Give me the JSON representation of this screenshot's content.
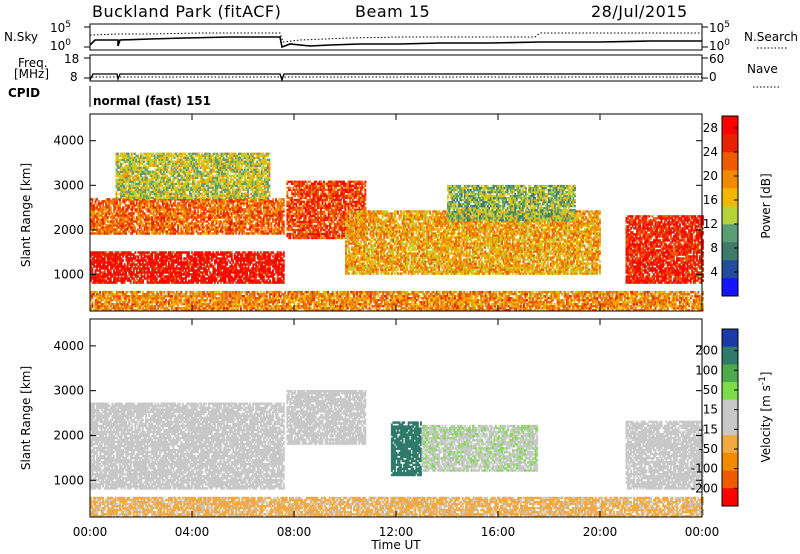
{
  "header": {
    "title": "Buckland Park (fitACF)",
    "beam": "Beam 15",
    "date": "28/Jul/2015"
  },
  "summary_panels": {
    "nsky_label": "N.Sky",
    "nsky_ticks": [
      "10^5",
      "10^0"
    ],
    "nsearch_label": "N.Search",
    "nsearch_ticks": [
      "10^5",
      "10^0"
    ],
    "freq_label": "Freq.",
    "freq_unit": "[MHz]",
    "freq_ticks": [
      "18",
      "8"
    ],
    "nave_label": "Nave",
    "nave_ticks": [
      "60",
      "0"
    ],
    "cpid_label": "CPID",
    "cpid_text": "normal (fast) 151"
  },
  "colors": {
    "power_scale": [
      "#1414ff",
      "#234d9c",
      "#3f7a6a",
      "#5a9c74",
      "#b7d33c",
      "#f1b800",
      "#f28a00",
      "#ee5a00",
      "#e82200",
      "#ff0000"
    ],
    "velocity_scale": [
      "#ff0000",
      "#ef5a00",
      "#f28a00",
      "#f2a940",
      "#c8c8c8",
      "#c8c8c8",
      "#7ddc4a",
      "#4caa4c",
      "#2f7a6a",
      "#1a3aa8"
    ],
    "ground_scatter": "#c0c0c0"
  },
  "chart_data": [
    {
      "type": "heatmap",
      "title": "Power",
      "xlabel": "Time UT",
      "ylabel": "Slant Range [km]",
      "colorbar_label": "Power [dB]",
      "xlim": [
        0,
        24
      ],
      "ylim": [
        180,
        4600
      ],
      "xticks": [
        "00:00",
        "04:00",
        "08:00",
        "12:00",
        "16:00",
        "20:00",
        "00:00"
      ],
      "yticks": [
        1000,
        2000,
        3000,
        4000
      ],
      "colorbar_ticks": [
        4,
        8,
        12,
        16,
        20,
        24,
        28
      ],
      "colorbar_range": [
        0,
        30
      ],
      "regions": [
        {
          "t": [
            0.0,
            7.6
          ],
          "range": [
            800,
            1500
          ],
          "value": 28
        },
        {
          "t": [
            0.0,
            7.6
          ],
          "range": [
            1900,
            2700
          ],
          "value": 22
        },
        {
          "t": [
            1.0,
            7.0
          ],
          "range": [
            2700,
            3700
          ],
          "value": 14
        },
        {
          "t": [
            7.7,
            10.8
          ],
          "range": [
            1800,
            3100
          ],
          "value": 24
        },
        {
          "t": [
            10.0,
            20.0
          ],
          "range": [
            1000,
            2400
          ],
          "value": 18
        },
        {
          "t": [
            14.0,
            19.0
          ],
          "range": [
            2200,
            3000
          ],
          "value": 12
        },
        {
          "t": [
            21.0,
            24.0
          ],
          "range": [
            800,
            2300
          ],
          "value": 26
        },
        {
          "t": [
            0.0,
            24.0
          ],
          "range": [
            180,
            600
          ],
          "value": 20
        }
      ]
    },
    {
      "type": "heatmap",
      "title": "Velocity",
      "xlabel": "Time UT",
      "ylabel": "Slant Range [km]",
      "colorbar_label": "Velocity [m s^-1]",
      "xlim": [
        0,
        24
      ],
      "ylim": [
        180,
        4600
      ],
      "xticks": [
        "00:00",
        "04:00",
        "08:00",
        "12:00",
        "16:00",
        "20:00",
        "00:00"
      ],
      "yticks": [
        1000,
        2000,
        3000,
        4000
      ],
      "colorbar_ticks": [
        200,
        100,
        50,
        15,
        -15,
        -50,
        -100,
        -200
      ],
      "colorbar_range": [
        -250,
        250
      ],
      "regions": [
        {
          "t": [
            0.0,
            7.6
          ],
          "range": [
            800,
            2700
          ],
          "value": 0
        },
        {
          "t": [
            7.7,
            10.8
          ],
          "range": [
            1800,
            3000
          ],
          "value": 0
        },
        {
          "t": [
            11.8,
            13.0
          ],
          "range": [
            1100,
            2300
          ],
          "value": 180
        },
        {
          "t": [
            13.0,
            17.5
          ],
          "range": [
            1200,
            2200
          ],
          "value": 40
        },
        {
          "t": [
            21.0,
            24.0
          ],
          "range": [
            800,
            2300
          ],
          "value": 0
        },
        {
          "t": [
            0.0,
            24.0
          ],
          "range": [
            180,
            600
          ],
          "value": -60
        }
      ]
    }
  ]
}
